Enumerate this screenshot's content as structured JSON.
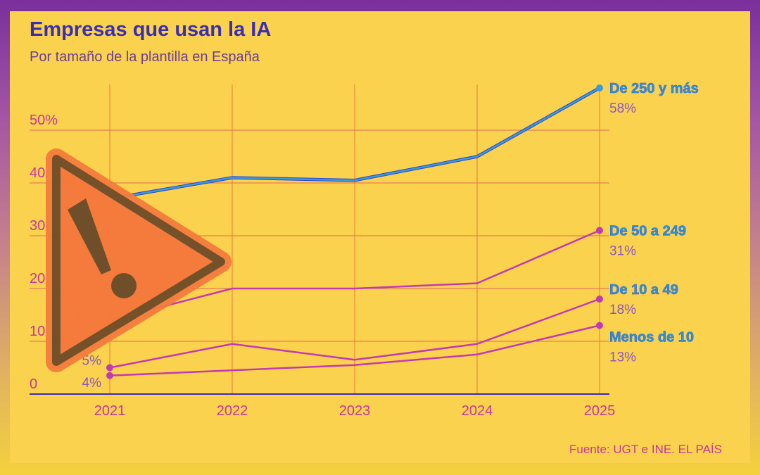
{
  "title": "Empresas que usan la IA",
  "subtitle": "Por tamaño de la plantilla en España",
  "source": "Fuente: UGT e INE. EL PAÍS",
  "colors": {
    "background": "#fbd24e",
    "accent_line": "#3a9bd9",
    "magenta": "#c23ab0",
    "grid": "#e06a55"
  },
  "warning_icon": "warning-triangle-icon",
  "chart_data": {
    "type": "line",
    "title": "Empresas que usan la IA",
    "subtitle": "Por tamaño de la plantilla en España",
    "x": [
      "2021",
      "2022",
      "2023",
      "2024",
      "2025"
    ],
    "ylim": [
      0,
      60
    ],
    "yticks": [
      0,
      10,
      20,
      30,
      40,
      50
    ],
    "ytick_labels": [
      "0",
      "10",
      "20",
      "30",
      "40",
      "50%"
    ],
    "grid": true,
    "series": [
      {
        "name": "De 250 y más",
        "values": [
          37,
          41,
          40.5,
          45,
          58
        ],
        "color": "#3a9bd9",
        "start_label": "37%",
        "end_label": "58%"
      },
      {
        "name": "De 50 a 249",
        "values": [
          14,
          20,
          20,
          21,
          31
        ],
        "color": "#c23ab0",
        "start_label": "14%",
        "end_label": "31%"
      },
      {
        "name": "De 10 a 49",
        "values": [
          5,
          9.5,
          6.5,
          9.5,
          18
        ],
        "color": "#c23ab0",
        "start_label": "5%",
        "end_label": "18%"
      },
      {
        "name": "Menos de 10",
        "values": [
          3.5,
          4.5,
          5.5,
          7.5,
          13
        ],
        "color": "#c23ab0",
        "start_label": "4%",
        "end_label": "13%"
      }
    ]
  }
}
